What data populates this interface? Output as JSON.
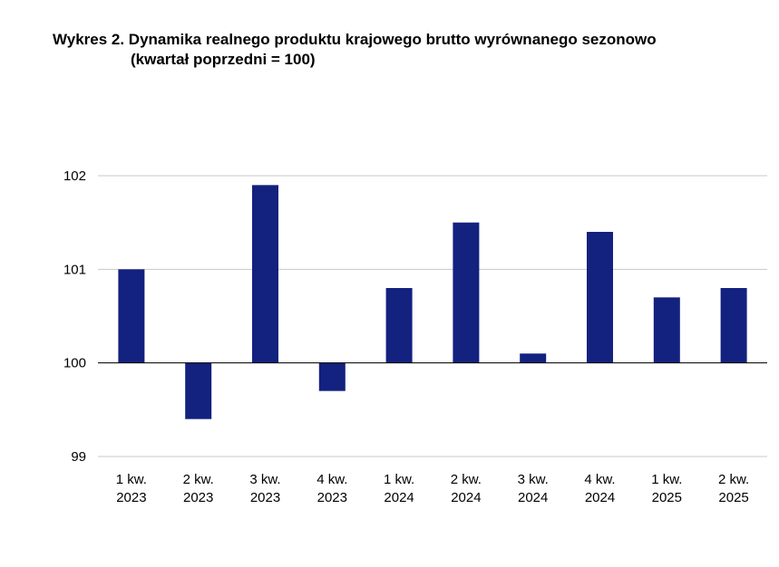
{
  "chart_data": {
    "type": "bar",
    "title": "Wykres 2. Dynamika realnego produktu krajowego brutto wyrównanego sezonowo",
    "subtitle": "(kwartał poprzedni = 100)",
    "xlabel": "",
    "ylabel": "",
    "baseline": 100,
    "ylim": [
      99,
      102
    ],
    "yticks": [
      "99",
      "100",
      "101",
      "102"
    ],
    "ytick_values": [
      99,
      100,
      101,
      102
    ],
    "grid": true,
    "bar_color": "#13217f",
    "categories": [
      [
        "1 kw.",
        "2023"
      ],
      [
        "2 kw.",
        "2023"
      ],
      [
        "3 kw.",
        "2023"
      ],
      [
        "4 kw.",
        "2023"
      ],
      [
        "1 kw.",
        "2024"
      ],
      [
        "2 kw.",
        "2024"
      ],
      [
        "3 kw.",
        "2024"
      ],
      [
        "4 kw.",
        "2024"
      ],
      [
        "1 kw.",
        "2025"
      ],
      [
        "2 kw.",
        "2025"
      ]
    ],
    "values": [
      101.0,
      99.4,
      101.9,
      99.7,
      100.8,
      101.5,
      100.1,
      101.4,
      100.7,
      100.8
    ]
  }
}
